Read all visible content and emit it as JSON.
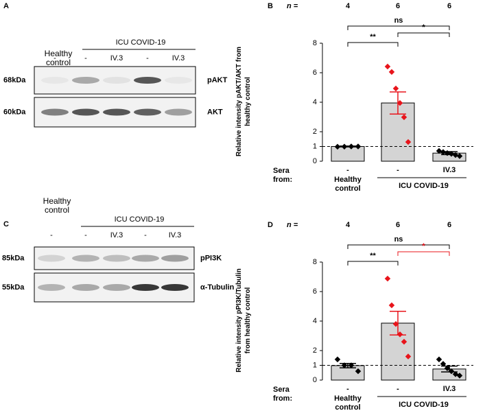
{
  "blots": [
    {
      "panel": "A",
      "group_labels": [
        "Healthy control",
        "ICU COVID-19"
      ],
      "lanes": [
        "-",
        "-",
        "IV.3",
        "-",
        "IV.3"
      ],
      "rows": [
        {
          "marker": "68kDa",
          "protein": "pAKT"
        },
        {
          "marker": "60kDa",
          "protein": "AKT"
        }
      ]
    },
    {
      "panel": "C",
      "group_labels": [
        "Healthy control",
        "ICU COVID-19"
      ],
      "lanes": [
        "-",
        "-",
        "IV.3",
        "-",
        "IV.3"
      ],
      "rows": [
        {
          "marker": "85kDa",
          "protein": "pPI3K"
        },
        {
          "marker": "55kDa",
          "protein": "α-Tubulin"
        }
      ]
    }
  ],
  "chart_data": [
    {
      "type": "bar",
      "panel": "B",
      "n_label": "n =",
      "n": [
        4,
        6,
        6
      ],
      "ylabel": "Relative intensity pAKT/AKT from healthy control",
      "ylim": [
        0,
        8
      ],
      "yticks": [
        0,
        1,
        2,
        4,
        6,
        8
      ],
      "categories": [
        "-",
        "-",
        "IV.3"
      ],
      "group_title": "Sera from:",
      "groups": [
        {
          "label": "Healthy control",
          "from": 0,
          "to": 0
        },
        {
          "label": "ICU COVID-19",
          "from": 1,
          "to": 2
        }
      ],
      "values": [
        1.0,
        3.95,
        0.55
      ],
      "errors": [
        0.03,
        0.75,
        0.1
      ],
      "color": "#d4d4d4",
      "points": [
        [
          0.98,
          0.99,
          1.0,
          1.0
        ],
        [
          6.42,
          6.05,
          4.93,
          3.95,
          2.98,
          1.3
        ],
        [
          0.7,
          0.62,
          0.55,
          0.5,
          0.42,
          0.35
        ]
      ],
      "point_colors": [
        "#000000",
        "#e8141b",
        "#000000"
      ],
      "reference_line": 1,
      "comparisons": [
        {
          "from": 0,
          "to": 2,
          "label": "ns",
          "color": "#000000"
        },
        {
          "from": 1,
          "to": 2,
          "label": "*",
          "color": "#000000"
        },
        {
          "from": 0,
          "to": 1,
          "label": "**",
          "color": "#000000"
        }
      ]
    },
    {
      "type": "bar",
      "panel": "D",
      "n_label": "n =",
      "n": [
        4,
        6,
        6
      ],
      "ylabel": "Relative intensity pPI3K/Tubulin from healthy control",
      "ylim": [
        0,
        8
      ],
      "yticks": [
        0,
        1,
        2,
        4,
        6,
        8
      ],
      "categories": [
        "-",
        "-",
        "IV.3"
      ],
      "group_title": "Sera from:",
      "groups": [
        {
          "label": "Healthy control",
          "from": 0,
          "to": 0
        },
        {
          "label": "ICU COVID-19",
          "from": 1,
          "to": 2
        }
      ],
      "values": [
        0.98,
        3.86,
        0.75
      ],
      "errors": [
        0.15,
        0.8,
        0.2
      ],
      "color": "#d4d4d4",
      "points": [
        [
          1.4,
          1.0,
          1.0,
          0.6
        ],
        [
          6.88,
          5.07,
          3.8,
          3.1,
          2.6,
          1.6
        ],
        [
          1.4,
          1.1,
          0.8,
          0.6,
          0.4,
          0.3
        ]
      ],
      "point_colors": [
        "#000000",
        "#e8141b",
        "#000000"
      ],
      "reference_line": 1,
      "comparisons": [
        {
          "from": 0,
          "to": 2,
          "label": "ns",
          "color": "#000000"
        },
        {
          "from": 1,
          "to": 2,
          "label": "*",
          "color": "#e8141b"
        },
        {
          "from": 0,
          "to": 1,
          "label": "**",
          "color": "#000000"
        }
      ]
    }
  ]
}
